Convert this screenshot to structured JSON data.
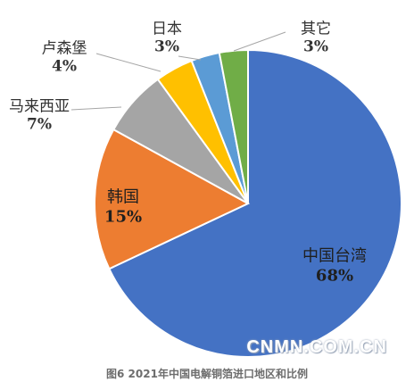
{
  "chart_data": {
    "type": "pie",
    "title": "",
    "caption": "图6 2021年中国电解铜箔进口地区和比例",
    "slices": [
      {
        "label": "中国台湾",
        "value": 68,
        "value_label": "68%",
        "color": "#4472c4"
      },
      {
        "label": "韩国",
        "value": 15,
        "value_label": "15%",
        "color": "#ed7d31"
      },
      {
        "label": "马来西亚",
        "value": 7,
        "value_label": "7%",
        "color": "#a5a5a5"
      },
      {
        "label": "卢森堡",
        "value": 4,
        "value_label": "4%",
        "color": "#ffc000"
      },
      {
        "label": "日本",
        "value": 3,
        "value_label": "3%",
        "color": "#5b9bd5"
      },
      {
        "label": "其它",
        "value": 3,
        "value_label": "3%",
        "color": "#70ad47"
      }
    ],
    "start_angle_deg": 0,
    "direction": "clockwise",
    "label_positions": [
      "inside",
      "inside",
      "outside-left",
      "outside-left",
      "outside-top",
      "outside-top-right"
    ]
  },
  "watermark": "CNMN.COM.CN"
}
